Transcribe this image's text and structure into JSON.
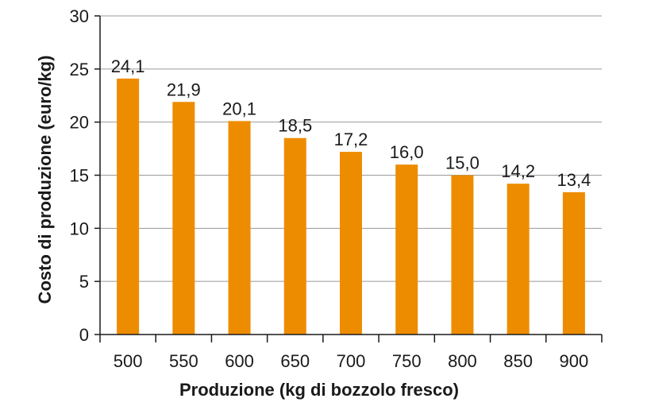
{
  "chart_data": {
    "type": "bar",
    "title": "",
    "xlabel": "Produzione (kg di bozzolo fresco)",
    "ylabel": "Costo di produzione (euro/kg)",
    "categories": [
      "500",
      "550",
      "600",
      "650",
      "700",
      "750",
      "800",
      "850",
      "900"
    ],
    "values": [
      24.1,
      21.9,
      20.1,
      18.5,
      17.2,
      16.0,
      15.0,
      14.2,
      13.4
    ],
    "value_labels": [
      "24,1",
      "21,9",
      "20,1",
      "18,5",
      "17,2",
      "16,0",
      "15,0",
      "14,2",
      "13,4"
    ],
    "ylim": [
      0,
      30
    ],
    "yticks": [
      0,
      5,
      10,
      15,
      20,
      25,
      30
    ],
    "grid": true,
    "legend": "none",
    "colors": {
      "bar": "#EE8C00",
      "grid": "#9a9a9a",
      "axis": "#1a1a1a"
    }
  }
}
